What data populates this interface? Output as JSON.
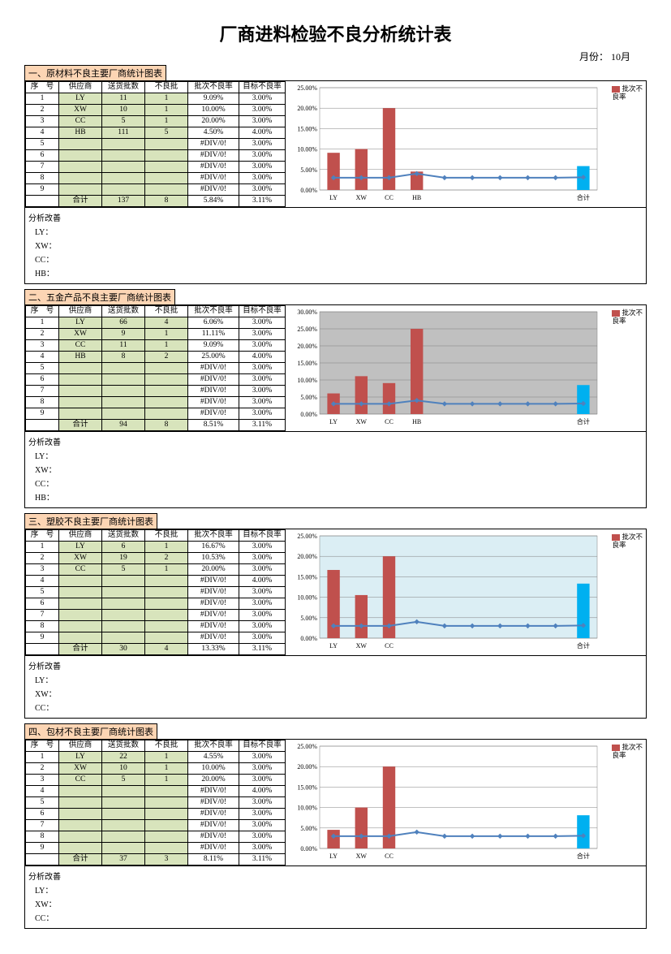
{
  "title": "厂商进料检验不良分析统计表",
  "month_label": "月份：",
  "month_value": "10月",
  "legend_label": "批次不良率",
  "columns": [
    "序　号",
    "供应商",
    "送货批数",
    "不良批",
    "批次不良率",
    "目标不良率"
  ],
  "total_label": "合计",
  "analysis_label": "分析改善",
  "chart_common": {
    "ytick_format_pct": true,
    "grid_color": "#808080",
    "bar_color": "#c0504d",
    "bar_color_total": "#00b0f0",
    "line_color": "#4f81bd",
    "marker_color": "#4f81bd",
    "marker_size": 4,
    "axis_fontsize": 8
  },
  "sections": [
    {
      "header": "一、原材料不良主要厂商统计图表",
      "plot_bg": "#ffffff",
      "ylim": [
        0,
        25
      ],
      "ytick_step": 5,
      "rows": [
        {
          "seq": "1",
          "sup": "LY",
          "ship": "11",
          "bad": "1",
          "rate": "9.09%",
          "tgt": "3.00%",
          "rate_v": 9.09,
          "tgt_v": 3.0
        },
        {
          "seq": "2",
          "sup": "XW",
          "ship": "10",
          "bad": "1",
          "rate": "10.00%",
          "tgt": "3.00%",
          "rate_v": 10.0,
          "tgt_v": 3.0
        },
        {
          "seq": "3",
          "sup": "CC",
          "ship": "5",
          "bad": "1",
          "rate": "20.00%",
          "tgt": "3.00%",
          "rate_v": 20.0,
          "tgt_v": 3.0
        },
        {
          "seq": "4",
          "sup": "HB",
          "ship": "111",
          "bad": "5",
          "rate": "4.50%",
          "tgt": "4.00%",
          "rate_v": 4.5,
          "tgt_v": 4.0
        },
        {
          "seq": "5",
          "sup": "",
          "ship": "",
          "bad": "",
          "rate": "#DIV/0!",
          "tgt": "3.00%",
          "rate_v": null,
          "tgt_v": 3.0
        },
        {
          "seq": "6",
          "sup": "",
          "ship": "",
          "bad": "",
          "rate": "#DIV/0!",
          "tgt": "3.00%",
          "rate_v": null,
          "tgt_v": 3.0
        },
        {
          "seq": "7",
          "sup": "",
          "ship": "",
          "bad": "",
          "rate": "#DIV/0!",
          "tgt": "3.00%",
          "rate_v": null,
          "tgt_v": 3.0
        },
        {
          "seq": "8",
          "sup": "",
          "ship": "",
          "bad": "",
          "rate": "#DIV/0!",
          "tgt": "3.00%",
          "rate_v": null,
          "tgt_v": 3.0
        },
        {
          "seq": "9",
          "sup": "",
          "ship": "",
          "bad": "",
          "rate": "#DIV/0!",
          "tgt": "3.00%",
          "rate_v": null,
          "tgt_v": 3.0
        }
      ],
      "total": {
        "ship": "137",
        "bad": "8",
        "rate": "5.84%",
        "tgt": "3.11%",
        "rate_v": 5.84,
        "tgt_v": 3.11
      },
      "analysis_lines": [
        "LY：",
        "XW：",
        "CC：",
        "HB："
      ]
    },
    {
      "header": "二、五金产品不良主要厂商统计图表",
      "plot_bg": "#c0c0c0",
      "ylim": [
        0,
        30
      ],
      "ytick_step": 5,
      "rows": [
        {
          "seq": "1",
          "sup": "LY",
          "ship": "66",
          "bad": "4",
          "rate": "6.06%",
          "tgt": "3.00%",
          "rate_v": 6.06,
          "tgt_v": 3.0
        },
        {
          "seq": "2",
          "sup": "XW",
          "ship": "9",
          "bad": "1",
          "rate": "11.11%",
          "tgt": "3.00%",
          "rate_v": 11.11,
          "tgt_v": 3.0
        },
        {
          "seq": "3",
          "sup": "CC",
          "ship": "11",
          "bad": "1",
          "rate": "9.09%",
          "tgt": "3.00%",
          "rate_v": 9.09,
          "tgt_v": 3.0
        },
        {
          "seq": "4",
          "sup": "HB",
          "ship": "8",
          "bad": "2",
          "rate": "25.00%",
          "tgt": "4.00%",
          "rate_v": 25.0,
          "tgt_v": 4.0
        },
        {
          "seq": "5",
          "sup": "",
          "ship": "",
          "bad": "",
          "rate": "#DIV/0!",
          "tgt": "3.00%",
          "rate_v": null,
          "tgt_v": 3.0
        },
        {
          "seq": "6",
          "sup": "",
          "ship": "",
          "bad": "",
          "rate": "#DIV/0!",
          "tgt": "3.00%",
          "rate_v": null,
          "tgt_v": 3.0
        },
        {
          "seq": "7",
          "sup": "",
          "ship": "",
          "bad": "",
          "rate": "#DIV/0!",
          "tgt": "3.00%",
          "rate_v": null,
          "tgt_v": 3.0
        },
        {
          "seq": "8",
          "sup": "",
          "ship": "",
          "bad": "",
          "rate": "#DIV/0!",
          "tgt": "3.00%",
          "rate_v": null,
          "tgt_v": 3.0
        },
        {
          "seq": "9",
          "sup": "",
          "ship": "",
          "bad": "",
          "rate": "#DIV/0!",
          "tgt": "3.00%",
          "rate_v": null,
          "tgt_v": 3.0
        }
      ],
      "total": {
        "ship": "94",
        "bad": "8",
        "rate": "8.51%",
        "tgt": "3.11%",
        "rate_v": 8.51,
        "tgt_v": 3.11
      },
      "analysis_lines": [
        "LY：",
        "XW：",
        "CC：",
        "HB："
      ]
    },
    {
      "header": "三、塑胶不良主要厂商统计图表",
      "plot_bg": "#dbeef4",
      "ylim": [
        0,
        25
      ],
      "ytick_step": 5,
      "rows": [
        {
          "seq": "1",
          "sup": "LY",
          "ship": "6",
          "bad": "1",
          "rate": "16.67%",
          "tgt": "3.00%",
          "rate_v": 16.67,
          "tgt_v": 3.0
        },
        {
          "seq": "2",
          "sup": "XW",
          "ship": "19",
          "bad": "2",
          "rate": "10.53%",
          "tgt": "3.00%",
          "rate_v": 10.53,
          "tgt_v": 3.0
        },
        {
          "seq": "3",
          "sup": "CC",
          "ship": "5",
          "bad": "1",
          "rate": "20.00%",
          "tgt": "3.00%",
          "rate_v": 20.0,
          "tgt_v": 3.0
        },
        {
          "seq": "4",
          "sup": "",
          "ship": "",
          "bad": "",
          "rate": "#DIV/0!",
          "tgt": "4.00%",
          "rate_v": null,
          "tgt_v": 4.0
        },
        {
          "seq": "5",
          "sup": "",
          "ship": "",
          "bad": "",
          "rate": "#DIV/0!",
          "tgt": "3.00%",
          "rate_v": null,
          "tgt_v": 3.0
        },
        {
          "seq": "6",
          "sup": "",
          "ship": "",
          "bad": "",
          "rate": "#DIV/0!",
          "tgt": "3.00%",
          "rate_v": null,
          "tgt_v": 3.0
        },
        {
          "seq": "7",
          "sup": "",
          "ship": "",
          "bad": "",
          "rate": "#DIV/0!",
          "tgt": "3.00%",
          "rate_v": null,
          "tgt_v": 3.0
        },
        {
          "seq": "8",
          "sup": "",
          "ship": "",
          "bad": "",
          "rate": "#DIV/0!",
          "tgt": "3.00%",
          "rate_v": null,
          "tgt_v": 3.0
        },
        {
          "seq": "9",
          "sup": "",
          "ship": "",
          "bad": "",
          "rate": "#DIV/0!",
          "tgt": "3.00%",
          "rate_v": null,
          "tgt_v": 3.0
        }
      ],
      "total": {
        "ship": "30",
        "bad": "4",
        "rate": "13.33%",
        "tgt": "3.11%",
        "rate_v": 13.33,
        "tgt_v": 3.11
      },
      "analysis_lines": [
        "LY：",
        "XW：",
        "CC："
      ]
    },
    {
      "header": "四、包材不良主要厂商统计图表",
      "plot_bg": "#ffffff",
      "ylim": [
        0,
        25
      ],
      "ytick_step": 5,
      "rows": [
        {
          "seq": "1",
          "sup": "LY",
          "ship": "22",
          "bad": "1",
          "rate": "4.55%",
          "tgt": "3.00%",
          "rate_v": 4.55,
          "tgt_v": 3.0
        },
        {
          "seq": "2",
          "sup": "XW",
          "ship": "10",
          "bad": "1",
          "rate": "10.00%",
          "tgt": "3.00%",
          "rate_v": 10.0,
          "tgt_v": 3.0
        },
        {
          "seq": "3",
          "sup": "CC",
          "ship": "5",
          "bad": "1",
          "rate": "20.00%",
          "tgt": "3.00%",
          "rate_v": 20.0,
          "tgt_v": 3.0
        },
        {
          "seq": "4",
          "sup": "",
          "ship": "",
          "bad": "",
          "rate": "#DIV/0!",
          "tgt": "4.00%",
          "rate_v": null,
          "tgt_v": 4.0
        },
        {
          "seq": "5",
          "sup": "",
          "ship": "",
          "bad": "",
          "rate": "#DIV/0!",
          "tgt": "3.00%",
          "rate_v": null,
          "tgt_v": 3.0
        },
        {
          "seq": "6",
          "sup": "",
          "ship": "",
          "bad": "",
          "rate": "#DIV/0!",
          "tgt": "3.00%",
          "rate_v": null,
          "tgt_v": 3.0
        },
        {
          "seq": "7",
          "sup": "",
          "ship": "",
          "bad": "",
          "rate": "#DIV/0!",
          "tgt": "3.00%",
          "rate_v": null,
          "tgt_v": 3.0
        },
        {
          "seq": "8",
          "sup": "",
          "ship": "",
          "bad": "",
          "rate": "#DIV/0!",
          "tgt": "3.00%",
          "rate_v": null,
          "tgt_v": 3.0
        },
        {
          "seq": "9",
          "sup": "",
          "ship": "",
          "bad": "",
          "rate": "#DIV/0!",
          "tgt": "3.00%",
          "rate_v": null,
          "tgt_v": 3.0
        }
      ],
      "total": {
        "ship": "37",
        "bad": "3",
        "rate": "8.11%",
        "tgt": "3.11%",
        "rate_v": 8.11,
        "tgt_v": 3.11
      },
      "analysis_lines": [
        "LY：",
        "XW：",
        "CC："
      ]
    }
  ]
}
